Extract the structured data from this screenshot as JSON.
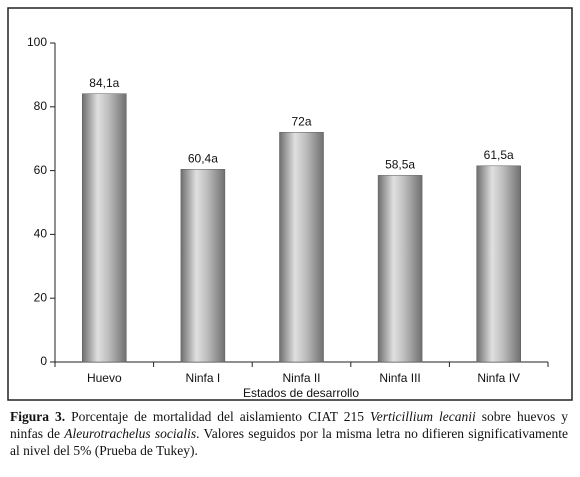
{
  "chart_data": {
    "type": "bar",
    "categories": [
      "Huevo",
      "Ninfa I",
      "Ninfa II",
      "Ninfa III",
      "Ninfa IV"
    ],
    "values": [
      84.1,
      60.4,
      72,
      58.5,
      61.5
    ],
    "value_labels": [
      "84,1a",
      "60,4a",
      "72a",
      "58,5a",
      "61,5a"
    ],
    "color": "#a8a8a8",
    "x_label": "Estados de desarrollo",
    "ylim": [
      0,
      100
    ],
    "yticks": [
      0,
      20,
      40,
      60,
      80,
      100
    ],
    "grid": false
  },
  "caption": {
    "label": "Figura 3.",
    "parts": [
      "Porcentaje de mortalidad del aislamiento CIAT 215 ",
      "Verticillium lecanii",
      " sobre huevos y ninfas de ",
      "Aleurotrachelus socialis",
      ". Valores seguidos por la misma letra no difieren significativamente al nivel del 5% (Prueba de Tukey)."
    ]
  }
}
